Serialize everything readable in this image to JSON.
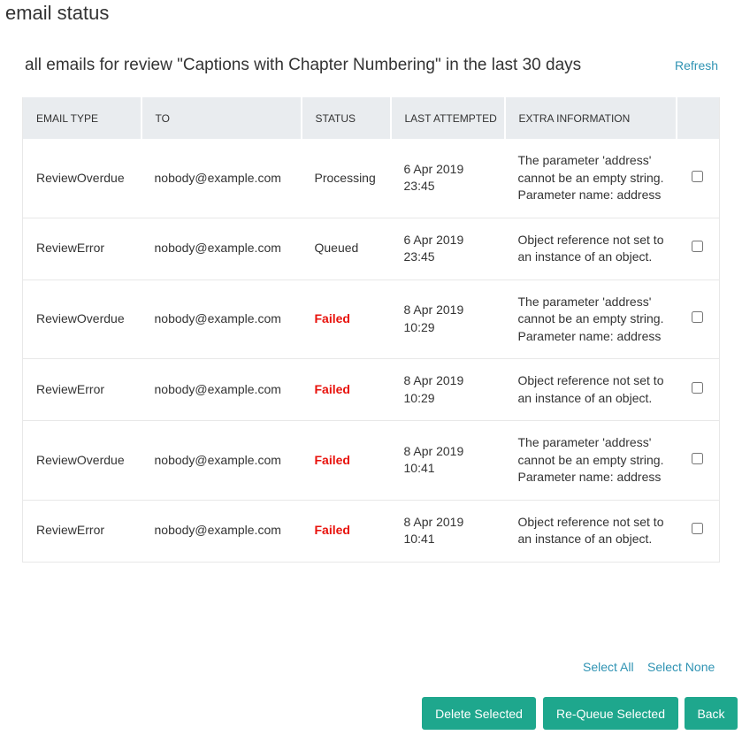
{
  "header": {
    "title": "email status",
    "subtitle": "all emails for review \"Captions with Chapter Numbering\" in the last 30 days",
    "refresh": "Refresh"
  },
  "table": {
    "columns": [
      "EMAIL TYPE",
      "TO",
      "STATUS",
      "LAST ATTEMPTED",
      "EXTRA INFORMATION"
    ],
    "rows": [
      {
        "type": "ReviewOverdue",
        "to": "nobody@example.com",
        "status": "Processing",
        "status_color": "#333333",
        "status_bold": false,
        "date": "6 Apr 2019",
        "time": "23:45",
        "extra": "The parameter 'address' cannot be an empty string. Parameter name: address"
      },
      {
        "type": "ReviewError",
        "to": "nobody@example.com",
        "status": "Queued",
        "status_color": "#333333",
        "status_bold": false,
        "date": "6 Apr 2019",
        "time": "23:45",
        "extra": "Object reference not set to an instance of an object."
      },
      {
        "type": "ReviewOverdue",
        "to": "nobody@example.com",
        "status": "Failed",
        "status_color": "#e8120c",
        "status_bold": true,
        "date": "8 Apr 2019",
        "time": "10:29",
        "extra": "The parameter 'address' cannot be an empty string. Parameter name: address"
      },
      {
        "type": "ReviewError",
        "to": "nobody@example.com",
        "status": "Failed",
        "status_color": "#e8120c",
        "status_bold": true,
        "date": "8 Apr 2019",
        "time": "10:29",
        "extra": "Object reference not set to an instance of an object."
      },
      {
        "type": "ReviewOverdue",
        "to": "nobody@example.com",
        "status": "Failed",
        "status_color": "#e8120c",
        "status_bold": true,
        "date": "8 Apr 2019",
        "time": "10:41",
        "extra": "The parameter 'address' cannot be an empty string. Parameter name: address"
      },
      {
        "type": "ReviewError",
        "to": "nobody@example.com",
        "status": "Failed",
        "status_color": "#e8120c",
        "status_bold": true,
        "date": "8 Apr 2019",
        "time": "10:41",
        "extra": "Object reference not set to an instance of an object."
      }
    ]
  },
  "selection": {
    "select_all": "Select All",
    "select_none": "Select None"
  },
  "buttons": [
    "Delete Selected",
    "Re-Queue Selected",
    "Back"
  ]
}
